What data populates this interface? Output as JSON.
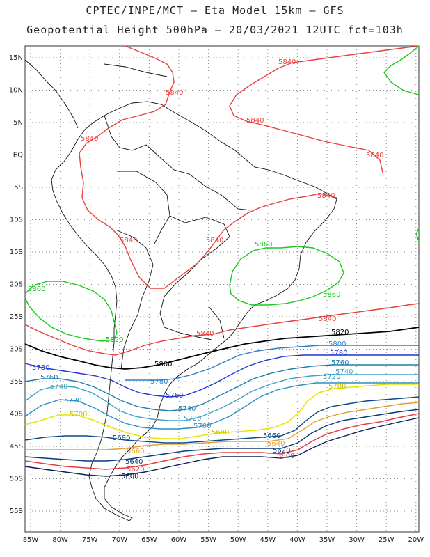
{
  "header": {
    "line1": "CPTEC/INPE/MCT –  Eta Model 15km – GFS",
    "line2": "Geopotential Height 500hPa – 20/03/2021 12UTC fct=103h"
  },
  "axes": {
    "lat_labels": [
      "15N",
      "10N",
      "5N",
      "EQ",
      "5S",
      "10S",
      "15S",
      "20S",
      "25S",
      "30S",
      "35S",
      "40S",
      "45S",
      "50S",
      "55S"
    ],
    "lon_labels": [
      "85W",
      "80W",
      "75W",
      "70W",
      "65W",
      "60W",
      "55W",
      "50W",
      "45W",
      "40W",
      "35W",
      "30W",
      "25W",
      "20W"
    ]
  },
  "colors": {
    "c5840": "#e8403c",
    "c5860": "#19c81e",
    "c5820": "#000000",
    "c5800": "#2a7fc8",
    "c5780": "#1f36d6",
    "c5760": "#1f7fb0",
    "c5740": "#3ea3c8",
    "c5720": "#2c8fbd",
    "c5700": "#e6e600",
    "c5680": "#0a4a8a",
    "c5660": "#e0a030",
    "c5640": "#0a3a7a",
    "c5620": "#e83c3c",
    "c5600": "#0a1f5a"
  },
  "contour_labels": [
    {
      "id": "l1",
      "text": "5840"
    },
    {
      "id": "l2",
      "text": "5840"
    },
    {
      "id": "l3",
      "text": "5840"
    },
    {
      "id": "l4",
      "text": "5840"
    },
    {
      "id": "l5",
      "text": "5840"
    },
    {
      "id": "l6",
      "text": "5840"
    },
    {
      "id": "l7",
      "text": "5840"
    },
    {
      "id": "l8",
      "text": "5840"
    },
    {
      "id": "l9",
      "text": "5840"
    },
    {
      "id": "l10",
      "text": "5840"
    },
    {
      "id": "l11",
      "text": "5860"
    },
    {
      "id": "l12",
      "text": "5860"
    },
    {
      "id": "l13",
      "text": "5860"
    },
    {
      "id": "l14",
      "text": "5820"
    },
    {
      "id": "l15",
      "text": "5820"
    },
    {
      "id": "l16",
      "text": "5800"
    },
    {
      "id": "l17",
      "text": "5800"
    },
    {
      "id": "l18",
      "text": "5780"
    },
    {
      "id": "l19",
      "text": "5780"
    },
    {
      "id": "l20",
      "text": "5780"
    },
    {
      "id": "l21",
      "text": "5760"
    },
    {
      "id": "l22",
      "text": "5760"
    },
    {
      "id": "l23",
      "text": "5760"
    },
    {
      "id": "l24",
      "text": "5740"
    },
    {
      "id": "l25",
      "text": "5740"
    },
    {
      "id": "l26",
      "text": "5740"
    },
    {
      "id": "l27",
      "text": "5720"
    },
    {
      "id": "l28",
      "text": "5720"
    },
    {
      "id": "l29",
      "text": "5720"
    },
    {
      "id": "l30",
      "text": "5700"
    },
    {
      "id": "l31",
      "text": "5700"
    },
    {
      "id": "l32",
      "text": "5700"
    },
    {
      "id": "l33",
      "text": "5680"
    },
    {
      "id": "l34",
      "text": "5680"
    },
    {
      "id": "l35",
      "text": "5660"
    },
    {
      "id": "l36",
      "text": "5660"
    },
    {
      "id": "l37",
      "text": "5640"
    },
    {
      "id": "l38",
      "text": "5640"
    },
    {
      "id": "l39",
      "text": "5620"
    },
    {
      "id": "l40",
      "text": "5620"
    },
    {
      "id": "l41",
      "text": "5600"
    },
    {
      "id": "l42",
      "text": "5600"
    }
  ]
}
